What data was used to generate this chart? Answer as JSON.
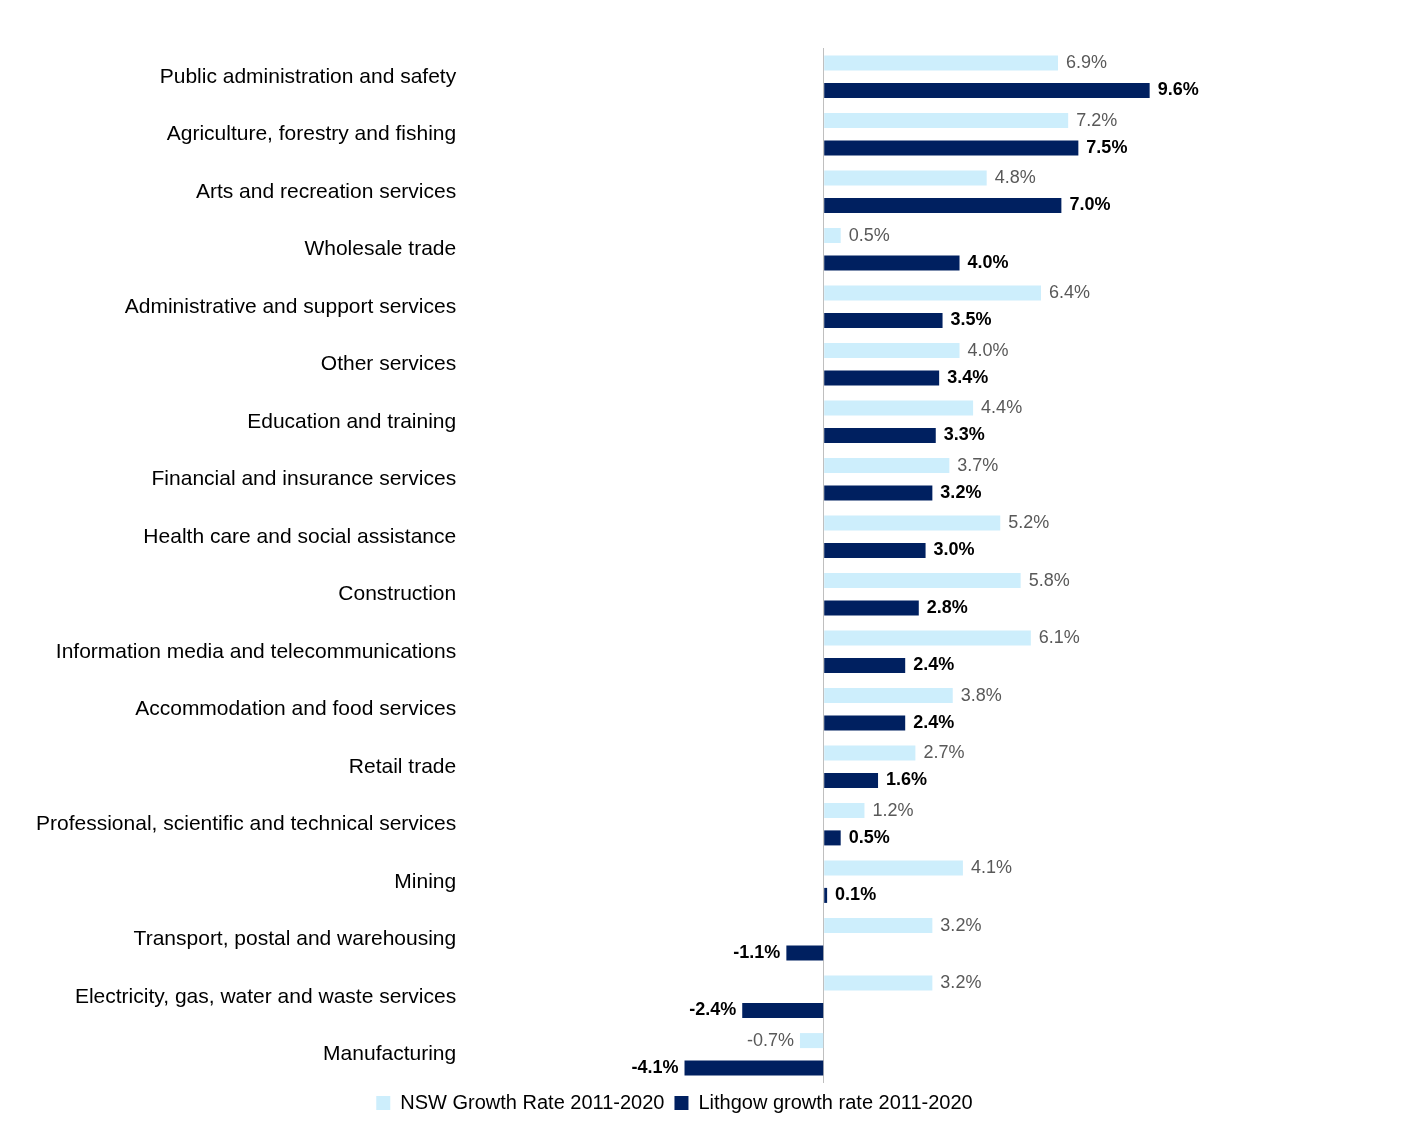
{
  "chart_data": {
    "type": "bar",
    "orientation": "horizontal",
    "legend": "bottom",
    "categories": [
      "Public administration and safety",
      "Agriculture, forestry and fishing",
      "Arts and recreation services",
      "Wholesale trade",
      "Administrative and support services",
      "Other services",
      "Education and training",
      "Financial and insurance services",
      "Health care and social assistance",
      "Construction",
      "Information media and telecommunications",
      "Accommodation and food services",
      "Retail trade",
      "Professional, scientific and technical services",
      "Mining",
      "Transport, postal and warehousing",
      "Electricity, gas, water and waste services",
      "Manufacturing"
    ],
    "series": [
      {
        "name": "NSW Growth Rate 2011-2020",
        "color": "#cdeefc",
        "values": [
          6.9,
          7.2,
          4.8,
          0.5,
          6.4,
          4.0,
          4.4,
          3.7,
          5.2,
          5.8,
          6.1,
          3.8,
          2.7,
          1.2,
          4.1,
          3.2,
          3.2,
          -0.7
        ],
        "value_labels": [
          "6.9%",
          "7.2%",
          "4.8%",
          "0.5%",
          "6.4%",
          "4.0%",
          "4.4%",
          "3.7%",
          "5.2%",
          "5.8%",
          "6.1%",
          "3.8%",
          "2.7%",
          "1.2%",
          "4.1%",
          "3.2%",
          "3.2%",
          "-0.7%"
        ]
      },
      {
        "name": "Lithgow growth rate 2011-2020",
        "color": "#002060",
        "values": [
          9.6,
          7.5,
          7.0,
          4.0,
          3.5,
          3.4,
          3.3,
          3.2,
          3.0,
          2.8,
          2.4,
          2.4,
          1.6,
          0.5,
          0.1,
          -1.1,
          -2.4,
          -4.1
        ],
        "value_labels": [
          "9.6%",
          "7.5%",
          "7.0%",
          "4.0%",
          "3.5%",
          "3.4%",
          "3.3%",
          "3.2%",
          "3.0%",
          "2.8%",
          "2.4%",
          "2.4%",
          "1.6%",
          "0.5%",
          "0.1%",
          "-1.1%",
          "-2.4%",
          "-4.1%"
        ]
      }
    ]
  }
}
